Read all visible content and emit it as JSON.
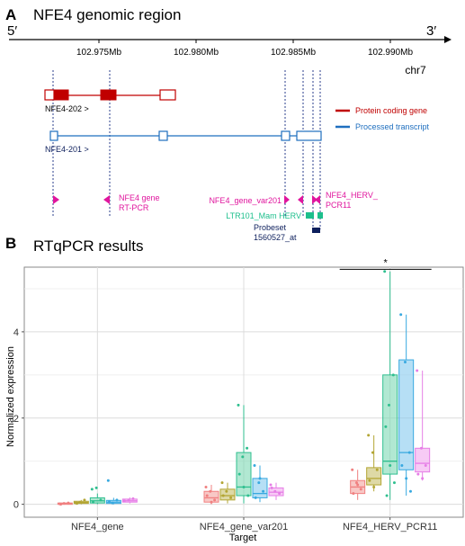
{
  "panel_a": {
    "letter": "A",
    "title": "NFE4 genomic region",
    "five_prime": "5′",
    "three_prime": "3′",
    "ticks": [
      "102.975Mb",
      "102.980Mb",
      "102.985Mb",
      "102.990Mb"
    ],
    "chromosome": "chr7",
    "transcripts": [
      {
        "label": "NFE4-202 >",
        "color": "#c00000"
      },
      {
        "label": "NFE4-201 >",
        "color": "#1f6fbf"
      }
    ],
    "legend": [
      {
        "label": "Protein coding gene",
        "color": "#c00000"
      },
      {
        "label": "Processed transcript",
        "color": "#1f6fbf"
      }
    ],
    "primers": {
      "gene_line1": "NFE4 gene",
      "gene_line2": "RT-PCR",
      "var201": "NFE4_gene_var201",
      "herv_line1": "NFE4_HERV_",
      "herv_line2": "PCR11",
      "color": "#e0169e"
    },
    "ltr": {
      "label": "LTR101_Mam HERV",
      "color": "#1dbf8c"
    },
    "probeset": {
      "line1": "Probeset",
      "line2": "1560527_at",
      "color": "#0d1f5c"
    }
  },
  "panel_b": {
    "letter": "B",
    "title": "RTqPCR results",
    "significance": "*"
  },
  "chart_data": {
    "type": "box",
    "ylabel": "Normalized expression",
    "xlabel": "Target",
    "ylim": [
      -0.3,
      5.5
    ],
    "yticks": [
      0,
      2,
      4
    ],
    "categories": [
      "NFE4_gene",
      "NFE4_gene_var201",
      "NFE4_HERV_PCR11"
    ],
    "group_colors": [
      "#f4a3a0",
      "#c8c06a",
      "#7dd8b4",
      "#86c9ee",
      "#f1a6ee"
    ],
    "group_edges": [
      "#f08080",
      "#b3a533",
      "#2fbf8f",
      "#38a9e0",
      "#e67ee6"
    ],
    "boxes": [
      [
        {
          "q1": 0.01,
          "median": 0.02,
          "q3": 0.03,
          "low": 0.0,
          "high": 0.04
        },
        {
          "q1": 0.02,
          "median": 0.04,
          "q3": 0.07,
          "low": 0.0,
          "high": 0.1
        },
        {
          "q1": 0.03,
          "median": 0.08,
          "q3": 0.15,
          "low": 0.0,
          "high": 0.25
        },
        {
          "q1": 0.02,
          "median": 0.05,
          "q3": 0.09,
          "low": 0.0,
          "high": 0.15
        },
        {
          "q1": 0.05,
          "median": 0.08,
          "q3": 0.12,
          "low": 0.02,
          "high": 0.16
        }
      ],
      [
        {
          "q1": 0.05,
          "median": 0.15,
          "q3": 0.3,
          "low": 0.0,
          "high": 0.45
        },
        {
          "q1": 0.1,
          "median": 0.2,
          "q3": 0.35,
          "low": 0.02,
          "high": 0.5
        },
        {
          "q1": 0.2,
          "median": 0.4,
          "q3": 1.2,
          "low": 0.02,
          "high": 2.3
        },
        {
          "q1": 0.15,
          "median": 0.25,
          "q3": 0.6,
          "low": 0.05,
          "high": 0.9
        },
        {
          "q1": 0.2,
          "median": 0.28,
          "q3": 0.38,
          "low": 0.1,
          "high": 0.5
        }
      ],
      [
        {
          "q1": 0.25,
          "median": 0.4,
          "q3": 0.55,
          "low": 0.1,
          "high": 0.8
        },
        {
          "q1": 0.45,
          "median": 0.6,
          "q3": 0.85,
          "low": 0.3,
          "high": 1.6
        },
        {
          "q1": 0.7,
          "median": 1.0,
          "q3": 3.0,
          "low": 0.1,
          "high": 5.4
        },
        {
          "q1": 0.8,
          "median": 1.2,
          "q3": 3.35,
          "low": 0.2,
          "high": 4.4
        },
        {
          "q1": 0.75,
          "median": 0.95,
          "q3": 1.3,
          "low": 0.55,
          "high": 3.1
        }
      ]
    ],
    "points": [
      [
        [
          0.01,
          0.02,
          0.03,
          0.0
        ],
        [
          0.03,
          0.05,
          0.1,
          0.02
        ],
        [
          0.35,
          0.38,
          0.1,
          0.05
        ],
        [
          0.55,
          0.03,
          0.1,
          0.06
        ],
        [
          0.08,
          0.1,
          0.13
        ]
      ],
      [
        [
          0.4,
          0.3,
          0.1,
          0.2,
          0.05
        ],
        [
          0.5,
          0.3,
          0.15,
          0.2
        ],
        [
          2.3,
          1.1,
          1.3,
          0.7,
          0.4,
          0.2
        ],
        [
          0.9,
          0.5,
          0.3,
          0.15,
          0.6
        ],
        [
          0.45,
          0.3,
          0.25,
          0.38
        ]
      ],
      [
        [
          0.8,
          0.5,
          0.35,
          0.25,
          0.45
        ],
        [
          1.6,
          1.2,
          0.8,
          0.55,
          0.4
        ],
        [
          5.4,
          2.3,
          3.0,
          1.8,
          0.9,
          0.5,
          0.2
        ],
        [
          4.4,
          3.3,
          1.2,
          0.9,
          0.6,
          0.3
        ],
        [
          3.1,
          1.3,
          0.9,
          0.7,
          0.6
        ]
      ]
    ]
  }
}
